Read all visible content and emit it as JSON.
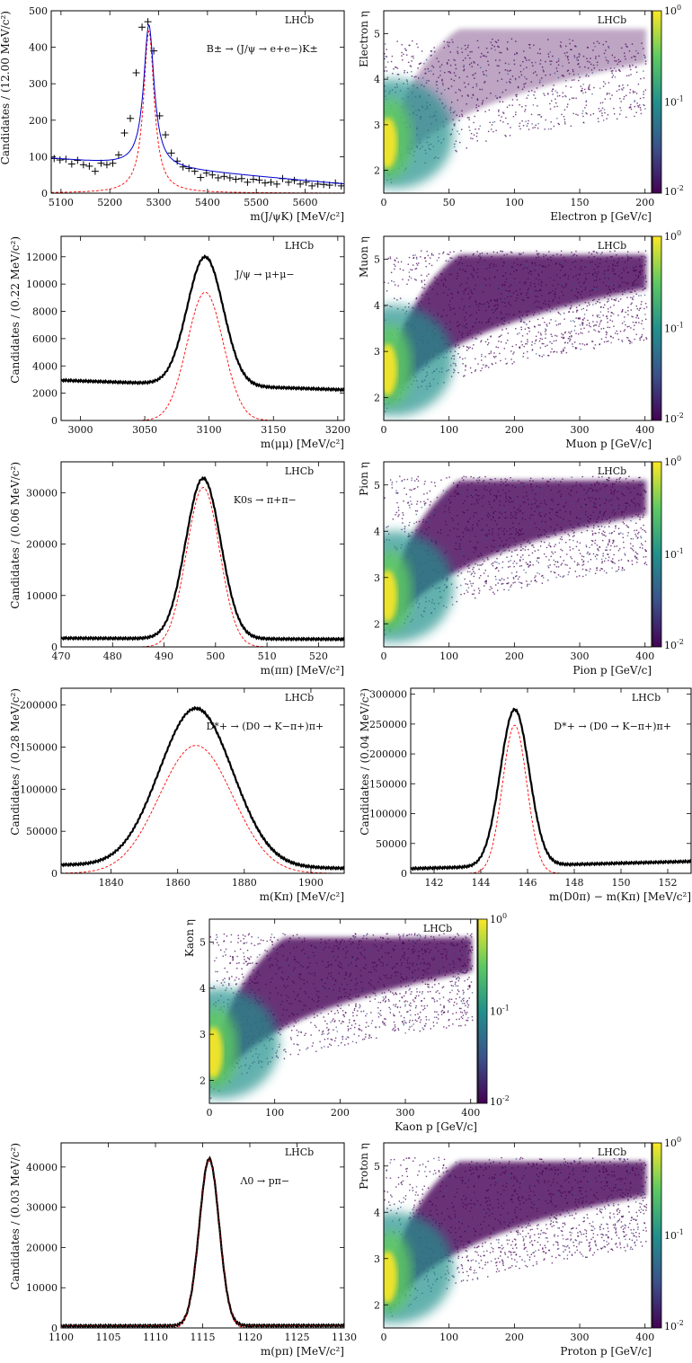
{
  "colormap": {
    "stops": [
      "#440154",
      "#3b528b",
      "#21918c",
      "#5ec962",
      "#fde725"
    ],
    "labels": [
      "10^0",
      "10^-1",
      "10^-2"
    ],
    "scale": "log"
  },
  "chart_data": [
    {
      "id": "p1",
      "type": "line",
      "tag": "LHCb",
      "annotation": "B± → (J/ψ → e+e−)K±",
      "xlabel": "m(J/ψK) [MeV/c²]",
      "ylabel": "Candidates / (12.00 MeV/c²)",
      "xlim": [
        5080,
        5680
      ],
      "ylim": [
        0,
        500
      ],
      "xticks": [
        5100,
        5200,
        5300,
        5400,
        5500,
        5600
      ],
      "yticks": [
        0,
        100,
        200,
        300,
        400,
        500
      ],
      "peak": 5280,
      "fit": {
        "bkg_start": 95,
        "bkg_end": 25,
        "amp": 390,
        "width": 13,
        "shape": "lorentz"
      },
      "signal": {
        "amp": 445,
        "width": 13
      },
      "points": [
        [
          5086,
          95
        ],
        [
          5098,
          91
        ],
        [
          5110,
          93
        ],
        [
          5122,
          80
        ],
        [
          5134,
          90
        ],
        [
          5146,
          78
        ],
        [
          5158,
          74
        ],
        [
          5170,
          60
        ],
        [
          5182,
          82
        ],
        [
          5194,
          78
        ],
        [
          5206,
          82
        ],
        [
          5218,
          105
        ],
        [
          5230,
          165
        ],
        [
          5242,
          205
        ],
        [
          5254,
          330
        ],
        [
          5266,
          455
        ],
        [
          5278,
          470
        ],
        [
          5290,
          390
        ],
        [
          5302,
          212
        ],
        [
          5314,
          160
        ],
        [
          5326,
          110
        ],
        [
          5338,
          88
        ],
        [
          5350,
          72
        ],
        [
          5362,
          68
        ],
        [
          5374,
          60
        ],
        [
          5386,
          43
        ],
        [
          5398,
          55
        ],
        [
          5410,
          50
        ],
        [
          5422,
          42
        ],
        [
          5434,
          46
        ],
        [
          5446,
          42
        ],
        [
          5458,
          38
        ],
        [
          5470,
          40
        ],
        [
          5482,
          30
        ],
        [
          5494,
          38
        ],
        [
          5506,
          36
        ],
        [
          5518,
          28
        ],
        [
          5530,
          30
        ],
        [
          5542,
          25
        ],
        [
          5554,
          40
        ],
        [
          5566,
          30
        ],
        [
          5578,
          35
        ],
        [
          5590,
          25
        ],
        [
          5602,
          30
        ],
        [
          5614,
          20
        ],
        [
          5626,
          25
        ],
        [
          5638,
          24
        ],
        [
          5650,
          22
        ],
        [
          5662,
          28
        ],
        [
          5674,
          20
        ]
      ],
      "fit_color": "#0000cc"
    },
    {
      "id": "h1",
      "type": "heatmap",
      "tag": "LHCb",
      "xlabel": "Electron p [GeV/c]",
      "ylabel": "Electron η",
      "xlim": [
        0,
        205
      ],
      "ylim": [
        1.5,
        5.5
      ],
      "xticks": [
        0,
        50,
        100,
        150,
        200
      ],
      "yticks": [
        2,
        3,
        4,
        5
      ],
      "colorbar_ticks": [
        "10^0",
        "10^-1",
        "10^-2"
      ]
    },
    {
      "id": "p2",
      "type": "line",
      "tag": "LHCb",
      "annotation": "J/ψ → μ+μ−",
      "xlabel": "m(μμ) [MeV/c²]",
      "ylabel": "Candidates / (0.22 MeV/c²)",
      "xlim": [
        2985,
        3205
      ],
      "ylim": [
        0,
        13500
      ],
      "xticks": [
        3000,
        3050,
        3100,
        3150,
        3200
      ],
      "yticks": [
        0,
        2000,
        4000,
        6000,
        8000,
        10000,
        12000
      ],
      "peak": 3097,
      "fit": {
        "bkg_start": 2950,
        "bkg_end": 2250,
        "amp": 9400,
        "width": 14,
        "shape": "gauss"
      },
      "signal": {
        "amp": 9400,
        "width": 14
      },
      "fit_color": "#000000"
    },
    {
      "id": "h2",
      "type": "heatmap",
      "tag": "LHCb",
      "xlabel": "Muon p [GeV/c]",
      "ylabel": "Muon η",
      "xlim": [
        0,
        410
      ],
      "ylim": [
        1.5,
        5.5
      ],
      "xticks": [
        0,
        100,
        200,
        300,
        400
      ],
      "yticks": [
        2,
        3,
        4,
        5
      ],
      "colorbar_ticks": [
        "10^0",
        "10^-1",
        "10^-2"
      ]
    },
    {
      "id": "p3",
      "type": "line",
      "tag": "LHCb",
      "annotation": "K0s → π+π−",
      "xlabel": "m(ππ) [MeV/c²]",
      "ylabel": "Candidates / (0.06 MeV/c²)",
      "xlim": [
        470,
        525
      ],
      "ylim": [
        0,
        36000
      ],
      "xticks": [
        470,
        480,
        490,
        500,
        510,
        520
      ],
      "yticks": [
        0,
        10000,
        20000,
        30000
      ],
      "peak": 497.6,
      "fit": {
        "bkg_start": 1700,
        "bkg_end": 1500,
        "amp": 31200,
        "width": 3.4,
        "shape": "gauss"
      },
      "signal": {
        "amp": 31000,
        "width": 3.2
      },
      "fit_color": "#000000"
    },
    {
      "id": "h3",
      "type": "heatmap",
      "tag": "LHCb",
      "xlabel": "Pion p [GeV/c]",
      "ylabel": "Pion η",
      "xlim": [
        0,
        410
      ],
      "ylim": [
        1.5,
        5.5
      ],
      "xticks": [
        0,
        100,
        200,
        300,
        400
      ],
      "yticks": [
        2,
        3,
        4,
        5
      ],
      "colorbar_ticks": [
        "10^0",
        "10^-1",
        "10^-2"
      ]
    },
    {
      "id": "p4",
      "type": "line",
      "tag": "LHCb",
      "annotation": "D*+ → (D0 → K−π+)π+",
      "xlabel": "m(Kπ) [MeV/c²]",
      "ylabel": "Candidates / (0.28 MeV/c²)",
      "xlim": [
        1825,
        1910
      ],
      "ylim": [
        0,
        220000
      ],
      "xticks": [
        1840,
        1860,
        1880,
        1900
      ],
      "yticks": [
        0,
        50000,
        100000,
        150000,
        200000
      ],
      "peak": 1865.5,
      "fit": {
        "bkg_start": 10000,
        "bkg_end": 6000,
        "amp": 188000,
        "width": 11,
        "shape": "gauss"
      },
      "signal": {
        "amp": 152000,
        "width": 11
      },
      "fit_color": "#0000cc"
    },
    {
      "id": "p5",
      "type": "line",
      "tag": "LHCb",
      "annotation": "D*+ → (D0 → K−π+)π+",
      "xlabel": "m(D0π) − m(Kπ) [MeV/c²]",
      "ylabel": "Candidates / (0.04 MeV/c²)",
      "xlim": [
        141,
        153
      ],
      "ylim": [
        0,
        310000
      ],
      "xticks": [
        142,
        144,
        146,
        148,
        150,
        152
      ],
      "yticks": [
        0,
        50000,
        100000,
        150000,
        200000,
        250000,
        300000
      ],
      "peak": 145.45,
      "fit": {
        "bkg_start": 8000,
        "bkg_end": 20000,
        "amp": 262000,
        "width": 0.62,
        "shape": "gauss"
      },
      "signal": {
        "amp": 248000,
        "width": 0.52
      },
      "fit_color": "#0000cc"
    },
    {
      "id": "h4",
      "type": "heatmap",
      "tag": "LHCb",
      "xlabel": "Kaon p [GeV/c]",
      "ylabel": "Kaon η",
      "xlim": [
        0,
        410
      ],
      "ylim": [
        1.5,
        5.5
      ],
      "xticks": [
        0,
        100,
        200,
        300,
        400
      ],
      "yticks": [
        2,
        3,
        4,
        5
      ],
      "colorbar_ticks": [
        "10^0",
        "10^-1",
        "10^-2"
      ]
    },
    {
      "id": "p6",
      "type": "line",
      "tag": "LHCb",
      "annotation": "Λ0 → pπ−",
      "xlabel": "m(pπ) [MeV/c²]",
      "ylabel": "Candidates / (0.03 MeV/c²)",
      "xlim": [
        1100,
        1130
      ],
      "ylim": [
        0,
        46000
      ],
      "xticks": [
        1100,
        1105,
        1110,
        1115,
        1120,
        1125,
        1130
      ],
      "yticks": [
        0,
        10000,
        20000,
        30000,
        40000
      ],
      "peak": 1115.7,
      "fit": {
        "bkg_start": 500,
        "bkg_end": 600,
        "amp": 41500,
        "width": 1.05,
        "shape": "gauss"
      },
      "signal": {
        "amp": 41500,
        "width": 1.05
      },
      "fit_color": "#cc0000"
    },
    {
      "id": "h5",
      "type": "heatmap",
      "tag": "LHCb",
      "xlabel": "Proton p [GeV/c]",
      "ylabel": "Proton η",
      "xlim": [
        0,
        410
      ],
      "ylim": [
        1.5,
        5.5
      ],
      "xticks": [
        0,
        100,
        200,
        300,
        400
      ],
      "yticks": [
        2,
        3,
        4,
        5
      ],
      "colorbar_ticks": [
        "10^0",
        "10^-1",
        "10^-2"
      ]
    }
  ]
}
